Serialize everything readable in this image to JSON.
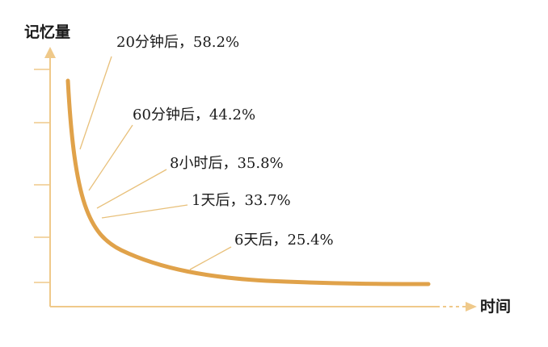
{
  "colors": {
    "curve": "#e0a24a",
    "axis": "#efc98a",
    "leader": "#e8c07a",
    "text": "#1a1a1a"
  },
  "chart_data": {
    "type": "line",
    "ylabel": "记忆量",
    "xlabel": "时间",
    "grid": false,
    "legend": "none",
    "y_unit": "%",
    "annotations": [
      {
        "label": "20分钟后，58.2%",
        "time": "20分钟后",
        "value": 58.2
      },
      {
        "label": "60分钟后，44.2%",
        "time": "60分钟后",
        "value": 44.2
      },
      {
        "label": "8小时后，35.8%",
        "time": "8小时后",
        "value": 35.8
      },
      {
        "label": "1天后，33.7%",
        "time": "1天后",
        "value": 33.7
      },
      {
        "label": "6天后，25.4%",
        "time": "6天后",
        "value": 25.4
      }
    ]
  }
}
